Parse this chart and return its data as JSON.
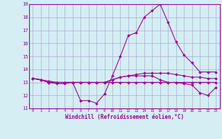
{
  "xlabel": "Windchill (Refroidissement éolien,°C)",
  "x": [
    0,
    1,
    2,
    3,
    4,
    5,
    6,
    7,
    8,
    9,
    10,
    11,
    12,
    13,
    14,
    15,
    16,
    17,
    18,
    19,
    20,
    21,
    22,
    23
  ],
  "lines": [
    [
      13.3,
      13.2,
      13.0,
      12.9,
      12.9,
      13.0,
      11.6,
      11.6,
      11.4,
      12.1,
      13.5,
      15.0,
      16.6,
      16.8,
      18.0,
      18.5,
      19.0,
      17.6,
      16.1,
      15.1,
      14.5,
      13.8,
      13.8,
      13.8
    ],
    [
      13.3,
      13.2,
      13.0,
      13.0,
      13.0,
      13.0,
      13.0,
      13.0,
      13.0,
      13.0,
      13.2,
      13.4,
      13.5,
      13.6,
      13.7,
      13.7,
      13.7,
      13.7,
      13.6,
      13.5,
      13.4,
      13.4,
      13.3,
      13.3
    ],
    [
      13.3,
      13.2,
      13.1,
      13.0,
      13.0,
      13.0,
      13.0,
      13.0,
      13.0,
      13.0,
      13.0,
      13.0,
      13.0,
      13.0,
      13.0,
      13.0,
      13.0,
      13.0,
      13.0,
      13.0,
      13.0,
      13.0,
      13.0,
      13.0
    ],
    [
      13.3,
      13.2,
      13.0,
      13.0,
      13.0,
      13.0,
      13.0,
      13.0,
      13.0,
      13.0,
      13.2,
      13.4,
      13.5,
      13.5,
      13.5,
      13.5,
      13.2,
      13.0,
      13.0,
      12.9,
      12.8,
      12.2,
      12.0,
      12.6
    ]
  ],
  "line_color": "#990099",
  "bg_color": "#d4eef4",
  "grid_color": "#aaaacc",
  "ylim": [
    11,
    19
  ],
  "yticks": [
    11,
    12,
    13,
    14,
    15,
    16,
    17,
    18,
    19
  ],
  "xticks": [
    0,
    1,
    2,
    3,
    4,
    5,
    6,
    7,
    8,
    9,
    10,
    11,
    12,
    13,
    14,
    15,
    16,
    17,
    18,
    19,
    20,
    21,
    22,
    23
  ],
  "markersize": 2.0,
  "linewidth": 0.8
}
